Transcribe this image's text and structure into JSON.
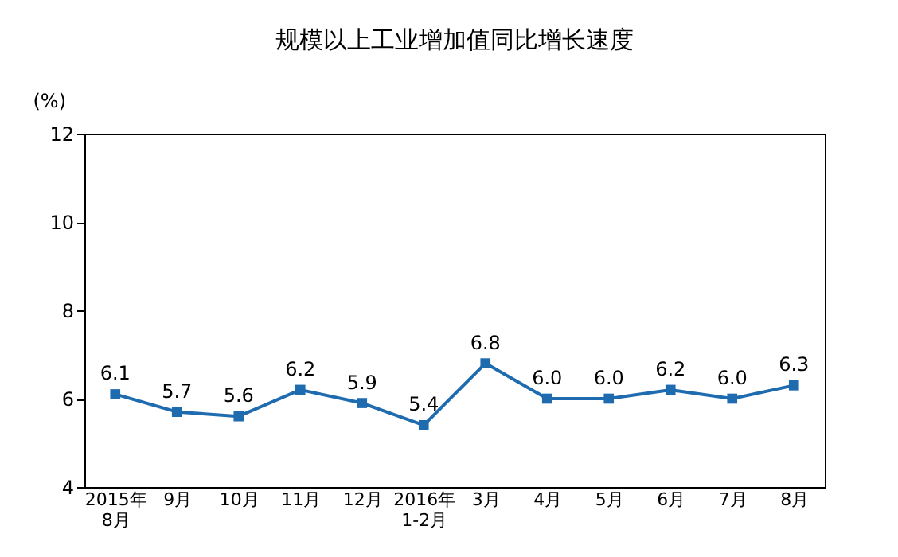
{
  "chart_data": {
    "type": "line",
    "title": "规模以上工业增加值同比增长速度",
    "ylabel": "(%)",
    "categories": [
      "2015年\n8月",
      "9月",
      "10月",
      "11月",
      "12月",
      "2016年\n1-2月",
      "3月",
      "4月",
      "5月",
      "6月",
      "7月",
      "8月"
    ],
    "series": [
      {
        "color": "#1f6bb0",
        "values": [
          6.1,
          5.7,
          5.6,
          6.2,
          5.9,
          5.4,
          6.8,
          6.0,
          6.0,
          6.2,
          6.0,
          6.3
        ],
        "value_labels": [
          "6.1",
          "5.7",
          "5.6",
          "6.2",
          "5.9",
          "5.4",
          "6.8",
          "6.0",
          "6.0",
          "6.2",
          "6.0",
          "6.3"
        ]
      }
    ],
    "ylim": [
      4,
      12
    ],
    "yticks": [
      4,
      6,
      8,
      10,
      12
    ],
    "grid": false,
    "marker": "square",
    "line_style": "solid"
  }
}
